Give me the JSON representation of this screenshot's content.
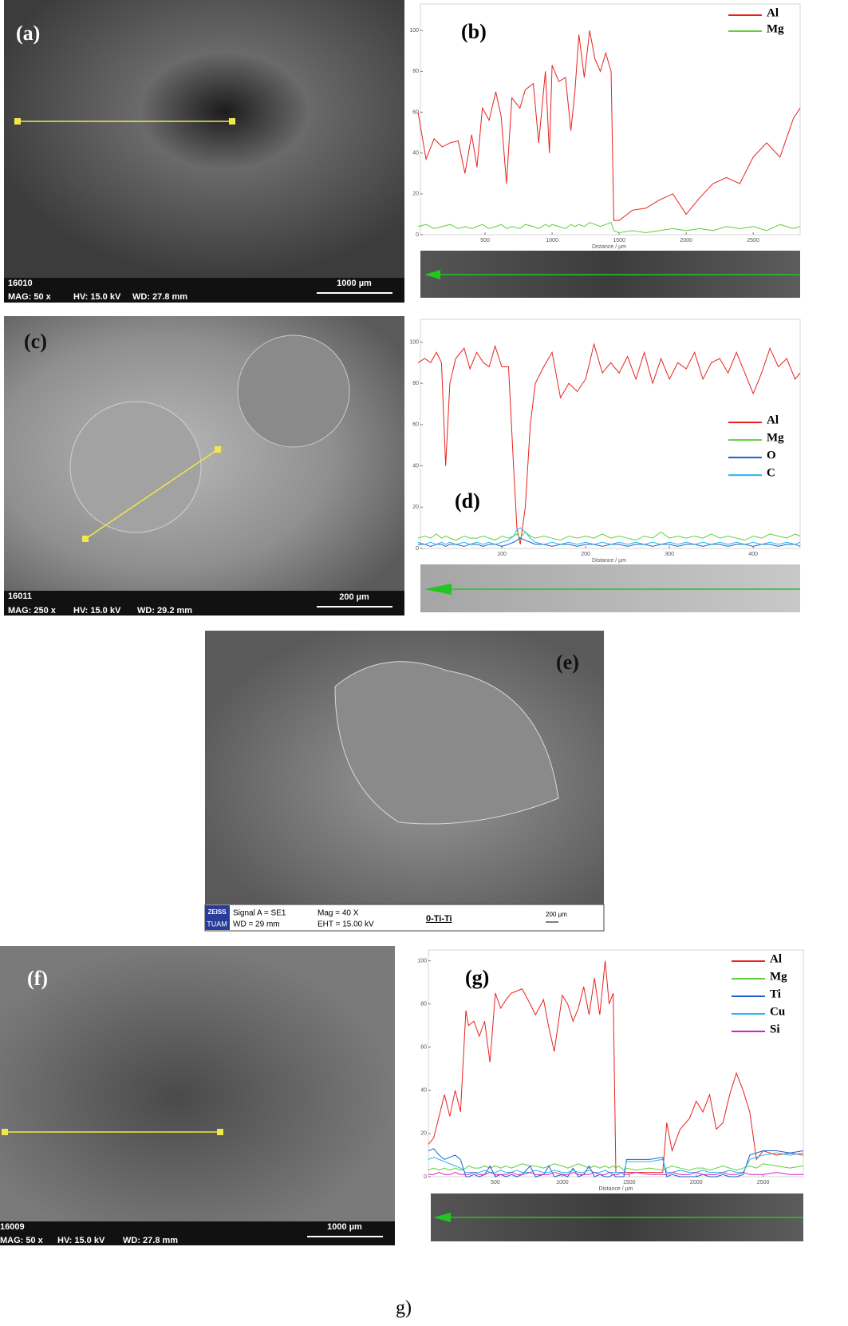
{
  "panels": {
    "a": {
      "label": "(a)",
      "id": "16010",
      "mag": "MAG: 50 x",
      "hv": "HV: 15.0 kV",
      "wd": "WD: 27.8 mm",
      "scale": "1000 µm"
    },
    "c": {
      "label": "(c)",
      "id": "16011",
      "mag": "MAG: 250 x",
      "hv": "HV: 15.0 kV",
      "wd": "WD: 29.2 mm",
      "scale": "200 µm"
    },
    "e": {
      "label": "(e)",
      "logo_top": "ZEISS",
      "logo_bottom": "TUAM",
      "signal": "Signal A = SE1",
      "wd": "WD =  29 mm",
      "mag": "Mag =    40 X",
      "eht": "EHT = 15.00 kV",
      "sample": "0-Ti-Ti",
      "scale": "200 µm"
    },
    "f": {
      "label": "(f)",
      "id": "16009",
      "mag": "MAG: 50 x",
      "hv": "HV: 15.0 kV",
      "wd": "WD: 27.8 mm",
      "scale": "1000 µm"
    },
    "g_caption": "g)"
  },
  "chart_data": [
    {
      "type": "line",
      "title": "(b)",
      "x_label": "Distance / µm",
      "legend": "upper right",
      "xlim": [
        0,
        2850
      ],
      "ylim": [
        0,
        113
      ],
      "xticks": [
        500,
        1000,
        1500,
        2000,
        2500
      ],
      "yticks": [
        0,
        20,
        40,
        60,
        80,
        100
      ],
      "x": [
        0,
        60,
        120,
        180,
        240,
        300,
        350,
        400,
        440,
        480,
        530,
        580,
        620,
        660,
        700,
        760,
        800,
        860,
        900,
        950,
        980,
        1000,
        1050,
        1100,
        1140,
        1170,
        1200,
        1240,
        1280,
        1320,
        1360,
        1400,
        1440,
        1460,
        1500,
        1600,
        1700,
        1800,
        1900,
        2000,
        2100,
        2200,
        2300,
        2400,
        2500,
        2600,
        2700,
        2800,
        2850
      ],
      "series": [
        {
          "name": "Al",
          "color": "#e8221f",
          "values": [
            60,
            37,
            47,
            43,
            45,
            46,
            30,
            49,
            33,
            62,
            56,
            70,
            58,
            25,
            67,
            62,
            71,
            74,
            45,
            80,
            40,
            83,
            75,
            77,
            51,
            70,
            98,
            77,
            100,
            86,
            80,
            89,
            80,
            7,
            7,
            12,
            13,
            17,
            20,
            10,
            18,
            25,
            28,
            25,
            38,
            45,
            38,
            57,
            62
          ]
        },
        {
          "name": "Mg",
          "color": "#5fcf3c",
          "values": [
            4,
            5,
            3,
            4,
            5,
            3,
            4,
            3,
            4,
            5,
            3,
            4,
            5,
            3,
            4,
            3,
            5,
            4,
            3,
            5,
            4,
            5,
            4,
            3,
            5,
            4,
            5,
            4,
            6,
            5,
            4,
            5,
            6,
            2,
            1,
            2,
            1,
            2,
            3,
            2,
            3,
            2,
            4,
            3,
            4,
            2,
            5,
            3,
            4
          ]
        }
      ]
    },
    {
      "type": "line",
      "title": "(d)",
      "x_label": "Distance / µm",
      "legend": "center right",
      "xlim": [
        0,
        456
      ],
      "ylim": [
        0,
        111
      ],
      "xticks": [
        100,
        200,
        300,
        400
      ],
      "yticks": [
        0,
        20,
        40,
        60,
        80,
        100
      ],
      "x": [
        0,
        8,
        15,
        22,
        28,
        33,
        38,
        45,
        55,
        62,
        70,
        78,
        85,
        92,
        100,
        108,
        114,
        118,
        122,
        128,
        134,
        140,
        150,
        160,
        170,
        180,
        190,
        200,
        210,
        220,
        230,
        240,
        250,
        260,
        270,
        280,
        290,
        300,
        310,
        320,
        330,
        340,
        350,
        360,
        370,
        380,
        390,
        400,
        410,
        420,
        430,
        440,
        450,
        456
      ],
      "series": [
        {
          "name": "Al",
          "color": "#e8221f",
          "values": [
            90,
            92,
            90,
            95,
            90,
            40,
            80,
            92,
            97,
            87,
            95,
            90,
            88,
            98,
            88,
            88,
            40,
            10,
            2,
            20,
            60,
            80,
            88,
            95,
            73,
            80,
            76,
            82,
            99,
            85,
            90,
            85,
            93,
            82,
            95,
            80,
            92,
            82,
            90,
            87,
            95,
            82,
            90,
            92,
            85,
            95,
            85,
            75,
            85,
            97,
            88,
            92,
            82,
            85
          ]
        },
        {
          "name": "Mg",
          "color": "#5fcf3c",
          "values": [
            5,
            6,
            5,
            7,
            5,
            6,
            5,
            4,
            6,
            5,
            5,
            6,
            5,
            4,
            6,
            5,
            6,
            7,
            5,
            8,
            6,
            5,
            6,
            5,
            4,
            6,
            5,
            6,
            5,
            7,
            5,
            6,
            5,
            4,
            6,
            5,
            8,
            5,
            6,
            5,
            6,
            5,
            7,
            5,
            6,
            5,
            4,
            6,
            5,
            7,
            6,
            5,
            7,
            6
          ]
        },
        {
          "name": "O",
          "color": "#1f5fc8",
          "values": [
            2,
            2,
            1,
            2,
            2,
            1,
            2,
            2,
            1,
            2,
            2,
            1,
            2,
            2,
            1,
            2,
            3,
            4,
            5,
            4,
            3,
            2,
            2,
            1,
            2,
            2,
            1,
            2,
            2,
            1,
            2,
            2,
            1,
            2,
            2,
            1,
            2,
            2,
            1,
            2,
            2,
            1,
            2,
            2,
            1,
            2,
            2,
            1,
            2,
            2,
            1,
            2,
            2,
            1
          ]
        },
        {
          "name": "C",
          "color": "#29b6ef",
          "values": [
            3,
            2,
            3,
            2,
            3,
            2,
            3,
            2,
            3,
            2,
            3,
            2,
            3,
            2,
            3,
            4,
            6,
            9,
            10,
            8,
            5,
            3,
            2,
            3,
            2,
            3,
            2,
            3,
            2,
            3,
            2,
            3,
            2,
            3,
            2,
            3,
            2,
            3,
            2,
            3,
            2,
            3,
            2,
            3,
            2,
            3,
            2,
            3,
            2,
            3,
            2,
            3,
            2,
            3
          ]
        }
      ]
    },
    {
      "type": "line",
      "title": "(g)",
      "x_label": "Distance / µm",
      "legend": "upper right",
      "xlim": [
        0,
        2800
      ],
      "ylim": [
        0,
        105
      ],
      "xticks": [
        500,
        1000,
        1500,
        2000,
        2500
      ],
      "yticks": [
        0,
        20,
        40,
        60,
        80,
        100
      ],
      "x": [
        0,
        40,
        80,
        120,
        160,
        200,
        240,
        280,
        300,
        340,
        380,
        420,
        460,
        500,
        540,
        580,
        620,
        660,
        700,
        760,
        800,
        860,
        900,
        940,
        1000,
        1040,
        1080,
        1120,
        1160,
        1200,
        1240,
        1280,
        1320,
        1350,
        1380,
        1400,
        1420,
        1440,
        1460,
        1480,
        1550,
        1650,
        1750,
        1780,
        1820,
        1880,
        1950,
        2000,
        2050,
        2100,
        2150,
        2200,
        2250,
        2300,
        2350,
        2400,
        2450,
        2500,
        2600,
        2700,
        2800
      ],
      "series": [
        {
          "name": "Al",
          "color": "#e8221f",
          "values": [
            15,
            18,
            28,
            38,
            28,
            40,
            30,
            77,
            70,
            72,
            65,
            72,
            53,
            85,
            78,
            82,
            85,
            86,
            87,
            80,
            75,
            82,
            69,
            58,
            84,
            80,
            72,
            78,
            88,
            75,
            92,
            75,
            100,
            80,
            85,
            2,
            2,
            2,
            2,
            2,
            2,
            2,
            2,
            25,
            12,
            22,
            27,
            35,
            30,
            38,
            22,
            25,
            38,
            48,
            40,
            30,
            8,
            12,
            10,
            11,
            10
          ]
        },
        {
          "name": "Mg",
          "color": "#5fcf3c",
          "values": [
            3,
            4,
            3,
            4,
            3,
            4,
            3,
            4,
            5,
            4,
            4,
            5,
            4,
            5,
            4,
            5,
            4,
            5,
            6,
            5,
            5,
            4,
            5,
            6,
            5,
            4,
            5,
            6,
            5,
            4,
            5,
            4,
            5,
            4,
            5,
            4,
            5,
            4,
            3,
            4,
            3,
            4,
            3,
            4,
            5,
            4,
            3,
            4,
            4,
            3,
            4,
            5,
            4,
            3,
            4,
            5,
            4,
            6,
            5,
            4,
            5
          ]
        },
        {
          "name": "Ti",
          "color": "#1f5fc8",
          "values": [
            12,
            13,
            10,
            8,
            9,
            10,
            8,
            0,
            0,
            1,
            0,
            1,
            5,
            0,
            1,
            0,
            1,
            0,
            1,
            5,
            0,
            1,
            5,
            0,
            1,
            0,
            4,
            0,
            1,
            5,
            0,
            1,
            0,
            0,
            1,
            0,
            0,
            0,
            0,
            8,
            8,
            8,
            9,
            0,
            1,
            0,
            0,
            0,
            1,
            0,
            0,
            1,
            0,
            0,
            1,
            10,
            11,
            12,
            12,
            11,
            12
          ]
        },
        {
          "name": "Cu",
          "color": "#29b6ef",
          "values": [
            8,
            9,
            8,
            7,
            6,
            5,
            4,
            2,
            2,
            2,
            2,
            3,
            2,
            2,
            3,
            2,
            2,
            3,
            2,
            2,
            3,
            2,
            2,
            3,
            2,
            2,
            3,
            2,
            2,
            3,
            2,
            2,
            3,
            2,
            2,
            2,
            2,
            2,
            2,
            7,
            7,
            7,
            8,
            2,
            2,
            3,
            2,
            2,
            3,
            2,
            2,
            2,
            3,
            2,
            2,
            8,
            9,
            10,
            11,
            10,
            11
          ]
        },
        {
          "name": "Si",
          "color": "#d81fc0",
          "values": [
            1,
            1,
            2,
            1,
            1,
            2,
            1,
            1,
            1,
            2,
            1,
            1,
            2,
            1,
            1,
            1,
            2,
            1,
            1,
            2,
            1,
            1,
            1,
            2,
            1,
            1,
            2,
            1,
            1,
            1,
            2,
            1,
            1,
            2,
            1,
            1,
            1,
            2,
            1,
            1,
            2,
            1,
            1,
            1,
            2,
            1,
            1,
            2,
            1,
            1,
            1,
            2,
            1,
            1,
            2,
            1,
            1,
            1,
            2,
            1,
            1
          ]
        }
      ]
    }
  ]
}
